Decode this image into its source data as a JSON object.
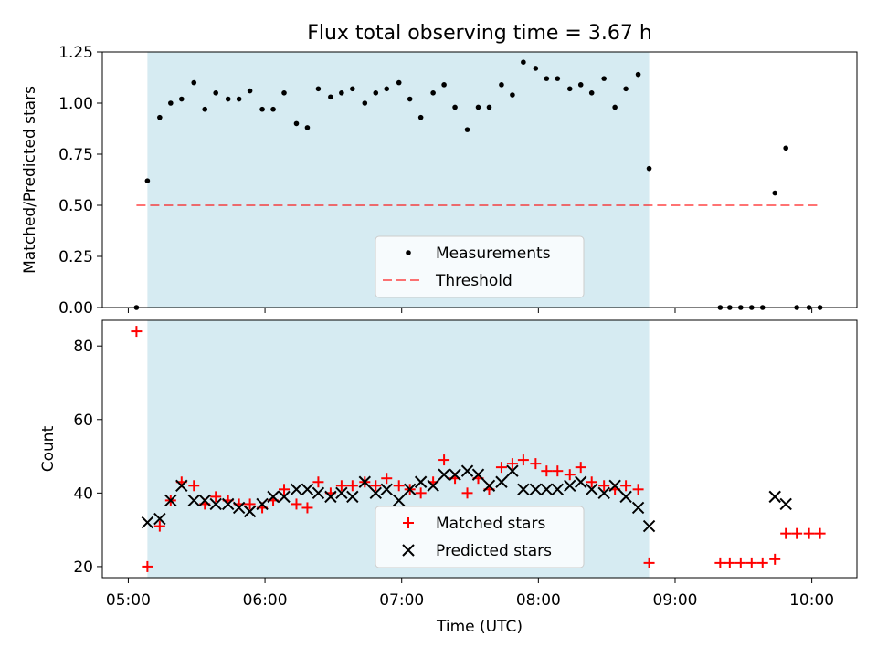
{
  "colors": {
    "shade": "#add8e6",
    "threshold": "#ff0000",
    "matched": "#ff0000",
    "predicted": "#000000",
    "measurements": "#000000"
  },
  "chart_data": [
    {
      "type": "scatter",
      "title": "Flux total observing time = 3.67 h",
      "xlabel": "",
      "ylabel": "Matched/Predicted stars",
      "ylim": [
        0,
        1.25
      ],
      "yticks": [
        0.0,
        0.25,
        0.5,
        0.75,
        1.0,
        1.25
      ],
      "ytick_labels": [
        "0.00",
        "0.25",
        "0.50",
        "0.75",
        "1.00",
        "1.25"
      ],
      "xlim": [
        4.81,
        10.33
      ],
      "shaded_interval": [
        5.14,
        8.81
      ],
      "legend_position": "lower-center",
      "threshold": {
        "name": "Threshold",
        "value": 0.5,
        "x_range": [
          5.06,
          10.06
        ]
      },
      "series": [
        {
          "name": "Measurements",
          "x": [
            5.06,
            5.14,
            5.23,
            5.31,
            5.39,
            5.48,
            5.56,
            5.64,
            5.73,
            5.81,
            5.89,
            5.98,
            6.06,
            6.14,
            6.23,
            6.31,
            6.39,
            6.48,
            6.56,
            6.64,
            6.73,
            6.81,
            6.89,
            6.98,
            7.06,
            7.14,
            7.23,
            7.31,
            7.39,
            7.48,
            7.56,
            7.64,
            7.73,
            7.81,
            7.89,
            7.98,
            8.06,
            8.14,
            8.23,
            8.31,
            8.39,
            8.48,
            8.56,
            8.64,
            8.73,
            8.81,
            9.33,
            9.4,
            9.48,
            9.56,
            9.64,
            9.73,
            9.81,
            9.89,
            9.98,
            10.06
          ],
          "values": [
            0.0,
            0.62,
            0.93,
            1.0,
            1.02,
            1.1,
            0.97,
            1.05,
            1.02,
            1.02,
            1.06,
            0.97,
            0.97,
            1.05,
            0.9,
            0.88,
            1.07,
            1.03,
            1.05,
            1.07,
            1.0,
            1.05,
            1.07,
            1.1,
            1.02,
            0.93,
            1.05,
            1.09,
            0.98,
            0.87,
            0.98,
            0.98,
            1.09,
            1.04,
            1.2,
            1.17,
            1.12,
            1.12,
            1.07,
            1.09,
            1.05,
            1.12,
            0.98,
            1.07,
            1.14,
            0.68,
            0.0,
            0.0,
            0.0,
            0.0,
            0.0,
            0.56,
            0.78,
            0.0,
            0.0,
            0.0
          ]
        }
      ]
    },
    {
      "type": "scatter",
      "title": "",
      "xlabel": "Time (UTC)",
      "ylabel": "Count",
      "ylim": [
        17,
        87
      ],
      "yticks": [
        20,
        40,
        60,
        80
      ],
      "ytick_labels": [
        "20",
        "40",
        "60",
        "80"
      ],
      "xlim": [
        4.81,
        10.33
      ],
      "xticks": [
        5,
        6,
        7,
        8,
        9,
        10
      ],
      "xtick_labels": [
        "05:00",
        "06:00",
        "07:00",
        "08:00",
        "09:00",
        "10:00"
      ],
      "shaded_interval": [
        5.14,
        8.81
      ],
      "legend_position": "lower-center",
      "series": [
        {
          "name": "Matched stars",
          "marker": "+",
          "x": [
            5.06,
            5.14,
            5.23,
            5.31,
            5.39,
            5.48,
            5.56,
            5.64,
            5.73,
            5.81,
            5.89,
            5.98,
            6.06,
            6.14,
            6.23,
            6.31,
            6.39,
            6.48,
            6.56,
            6.64,
            6.73,
            6.81,
            6.89,
            6.98,
            7.06,
            7.14,
            7.23,
            7.31,
            7.39,
            7.48,
            7.56,
            7.64,
            7.73,
            7.81,
            7.89,
            7.98,
            8.06,
            8.14,
            8.23,
            8.31,
            8.39,
            8.48,
            8.56,
            8.64,
            8.73,
            8.81,
            9.33,
            9.4,
            9.48,
            9.56,
            9.64,
            9.73,
            9.81,
            9.89,
            9.98,
            10.06
          ],
          "values": [
            84,
            20,
            31,
            38,
            43,
            42,
            37,
            39,
            38,
            37,
            37,
            36,
            38,
            41,
            37,
            36,
            43,
            40,
            42,
            42,
            43,
            42,
            44,
            42,
            41,
            40,
            43,
            49,
            44,
            40,
            44,
            41,
            47,
            48,
            49,
            48,
            46,
            46,
            45,
            47,
            43,
            42,
            41,
            42,
            41,
            21,
            21,
            21,
            21,
            21,
            21,
            22,
            29,
            29,
            29,
            29
          ]
        },
        {
          "name": "Predicted stars",
          "marker": "x",
          "x": [
            5.14,
            5.23,
            5.31,
            5.39,
            5.48,
            5.56,
            5.64,
            5.73,
            5.81,
            5.89,
            5.98,
            6.06,
            6.14,
            6.23,
            6.31,
            6.39,
            6.48,
            6.56,
            6.64,
            6.73,
            6.81,
            6.89,
            6.98,
            7.06,
            7.14,
            7.23,
            7.31,
            7.39,
            7.48,
            7.56,
            7.64,
            7.73,
            7.81,
            7.89,
            7.98,
            8.06,
            8.14,
            8.23,
            8.31,
            8.39,
            8.48,
            8.56,
            8.64,
            8.73,
            8.81,
            9.73,
            9.81
          ],
          "values": [
            32,
            33,
            38,
            42,
            38,
            38,
            37,
            37,
            36,
            35,
            37,
            39,
            39,
            41,
            41,
            40,
            39,
            40,
            39,
            43,
            40,
            41,
            38,
            41,
            43,
            42,
            45,
            45,
            46,
            45,
            42,
            43,
            46,
            41,
            41,
            41,
            41,
            42,
            43,
            41,
            40,
            42,
            39,
            36,
            31,
            39,
            37
          ]
        }
      ]
    }
  ]
}
